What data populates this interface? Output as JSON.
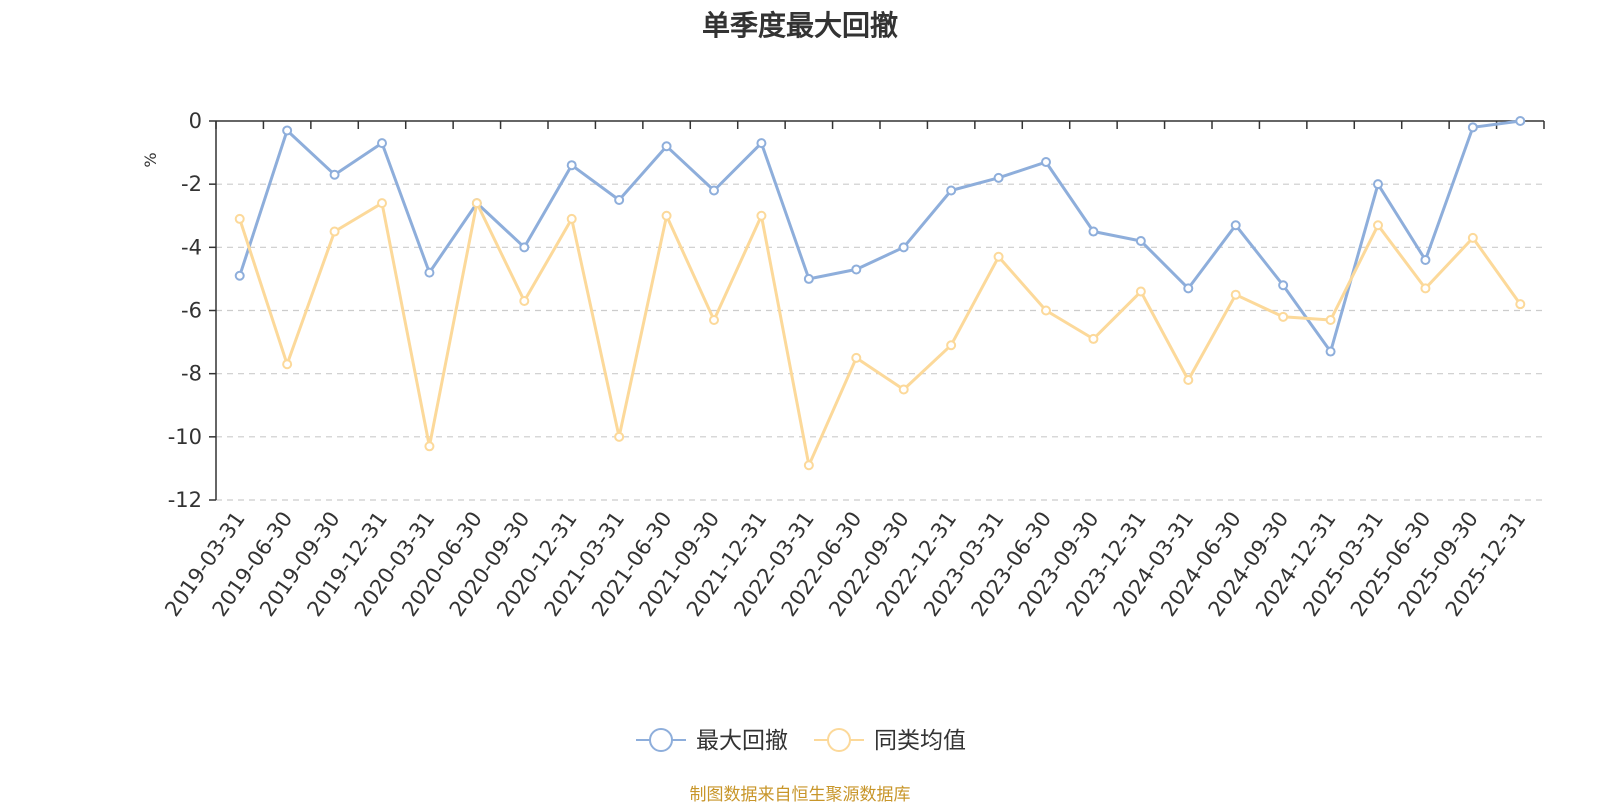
{
  "chart_data": {
    "type": "line",
    "title": "单季度最大回撤",
    "ylabel": "%",
    "ylim": [
      -12,
      0
    ],
    "yticks": [
      0,
      -2,
      -4,
      -6,
      -8,
      -10,
      -12
    ],
    "grid": true,
    "legend_position": "bottom-center",
    "categories": [
      "2019-03-31",
      "2019-06-30",
      "2019-09-30",
      "2019-12-31",
      "2020-03-31",
      "2020-06-30",
      "2020-09-30",
      "2020-12-31",
      "2021-03-31",
      "2021-06-30",
      "2021-09-30",
      "2021-12-31",
      "2022-03-31",
      "2022-06-30",
      "2022-09-30",
      "2022-12-31",
      "2023-03-31",
      "2023-06-30",
      "2023-09-30",
      "2023-12-31",
      "2024-03-31",
      "2024-06-30",
      "2024-09-30",
      "2024-12-31",
      "2025-03-31",
      "2025-06-30",
      "2025-09-30",
      "2025-12-31"
    ],
    "series": [
      {
        "name": "最大回撤",
        "color": "#8eaedb",
        "values": [
          -4.9,
          -0.3,
          -1.7,
          -0.7,
          -4.8,
          -2.6,
          -4.0,
          -1.4,
          -2.5,
          -0.8,
          -2.2,
          -0.7,
          -5.0,
          -4.7,
          -4.0,
          -2.2,
          -1.8,
          -1.3,
          -3.5,
          -3.8,
          -5.3,
          -3.3,
          -5.2,
          -7.3,
          -2.0,
          -4.4,
          -0.2,
          0.0
        ]
      },
      {
        "name": "同类均值",
        "color": "#fcd99a",
        "values": [
          -3.1,
          -7.7,
          -3.5,
          -2.6,
          -10.3,
          -2.6,
          -5.7,
          -3.1,
          -10.0,
          -3.0,
          -6.3,
          -3.0,
          -10.9,
          -7.5,
          -8.5,
          -7.1,
          -4.3,
          -6.0,
          -6.9,
          -5.4,
          -8.2,
          -5.5,
          -6.2,
          -6.3,
          -3.3,
          -5.3,
          -3.7,
          -5.8
        ]
      }
    ]
  },
  "footer": {
    "source": "制图数据来自恒生聚源数据库"
  }
}
